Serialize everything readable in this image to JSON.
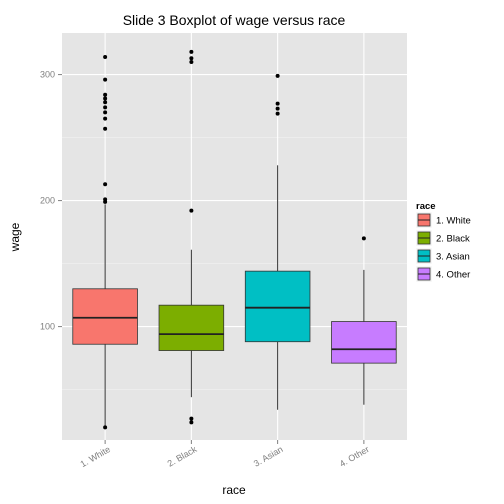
{
  "chart_data": {
    "type": "boxplot",
    "title": "Slide 3 Boxplot of wage versus race",
    "xlabel": "race",
    "ylabel": "wage",
    "ylim": [
      10,
      333
    ],
    "y_ticks": [
      100,
      200,
      300
    ],
    "y_minor_ticks": [
      50,
      150,
      250
    ],
    "grid": true,
    "legend_title": "race",
    "legend_position": "right",
    "categories": [
      "1. White",
      "2. Black",
      "3. Asian",
      "4. Other"
    ],
    "colors": [
      "#F8766D",
      "#7CAE00",
      "#00BFC4",
      "#C77CFF"
    ],
    "boxes": [
      {
        "category": "1. White",
        "whisker_low": 20,
        "q1": 86,
        "median": 107,
        "q3": 130,
        "whisker_high": 197,
        "outliers": [
          20,
          199,
          201,
          213,
          257,
          265,
          270,
          274,
          278,
          281,
          284,
          296,
          314
        ]
      },
      {
        "category": "2. Black",
        "whisker_low": 44,
        "q1": 81,
        "median": 94,
        "q3": 117,
        "whisker_high": 161,
        "outliers": [
          24,
          27,
          192,
          310,
          313,
          318
        ]
      },
      {
        "category": "3. Asian",
        "whisker_low": 34,
        "q1": 88,
        "median": 115,
        "q3": 144,
        "whisker_high": 228,
        "outliers": [
          269,
          273,
          277,
          299
        ]
      },
      {
        "category": "4. Other",
        "whisker_low": 38,
        "q1": 71,
        "median": 82,
        "q3": 104,
        "whisker_high": 145,
        "outliers": [
          170
        ]
      }
    ]
  }
}
